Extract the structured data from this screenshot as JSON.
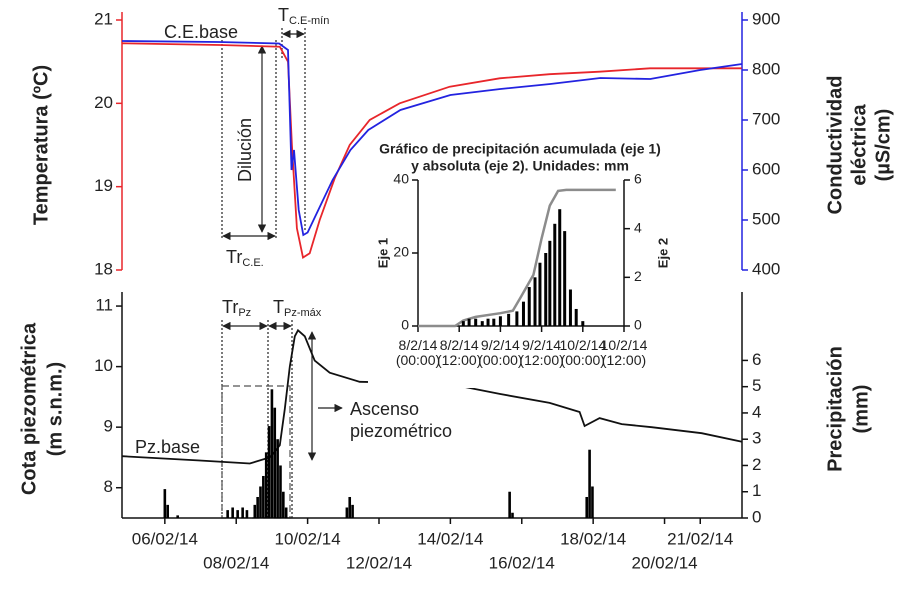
{
  "chart_data": [
    {
      "type": "line",
      "colored_axes": true,
      "ylabel": "Temperatura (ºC)",
      "y2label": [
        "Conductividad",
        "eléctrica",
        "(µS/cm)"
      ],
      "xlim": [
        4.8,
        22.17
      ],
      "ylim": [
        18,
        21
      ],
      "yticks": [
        18,
        19,
        20,
        21
      ],
      "y2lim": [
        400,
        900
      ],
      "y2ticks": [
        400,
        500,
        600,
        700,
        800,
        900
      ],
      "series": [
        {
          "name": "Temperatura",
          "color": "#e8262b",
          "x": [
            4.8,
            7.54,
            9.22,
            9.45,
            9.56,
            9.7,
            9.87,
            10.06,
            10.34,
            10.76,
            11.18,
            11.74,
            12.58,
            13.98,
            15.38,
            16.78,
            18.18,
            19.59,
            20.99,
            22.16
          ],
          "values": [
            20.72,
            20.7,
            20.68,
            20.5,
            19.5,
            18.5,
            18.15,
            18.2,
            18.6,
            19.1,
            19.5,
            19.8,
            20.0,
            20.2,
            20.3,
            20.35,
            20.38,
            20.42,
            20.42,
            20.42
          ]
        },
        {
          "name": "Conductividad eléctrica",
          "color": "#2323e0",
          "axis": "y2",
          "x": [
            4.8,
            7.5,
            9.2,
            9.45,
            9.55,
            9.62,
            9.75,
            9.88,
            10.0,
            10.3,
            10.7,
            11.2,
            11.7,
            12.6,
            14.0,
            15.4,
            16.8,
            18.2,
            19.6,
            21.0,
            22.17
          ],
          "values": [
            858,
            856,
            853,
            840,
            600,
            640,
            520,
            470,
            475,
            520,
            580,
            640,
            680,
            720,
            750,
            762,
            772,
            784,
            782,
            800,
            812
          ]
        }
      ],
      "annotations": [
        {
          "text": "C.E.base"
        },
        {
          "text": "T",
          "sub": "C.E-mín"
        },
        {
          "text": "Dilución"
        },
        {
          "text": "Tr",
          "sub": "C.E."
        }
      ]
    },
    {
      "type": "line",
      "ylabel": [
        "Cota piezométrica",
        "(m s.n.m.)"
      ],
      "y2label": [
        "Precipitación",
        "(mm)"
      ],
      "xlim": [
        4.8,
        22.17
      ],
      "xticks": [
        {
          "value": 6,
          "label": "06/02/14"
        },
        {
          "value": 8,
          "label": "08/02/14"
        },
        {
          "value": 10,
          "label": "10/02/14"
        },
        {
          "value": 12,
          "label": "12/02/14"
        },
        {
          "value": 14,
          "label": "14/02/14"
        },
        {
          "value": 16,
          "label": "16/02/14"
        },
        {
          "value": 18,
          "label": "18/02/14"
        },
        {
          "value": 20,
          "label": "20/02/14"
        },
        {
          "value": 21,
          "label": "21/02/14"
        }
      ],
      "ylim": [
        7.5,
        11.1
      ],
      "yticks": [
        8,
        9,
        10,
        11
      ],
      "y2lim": [
        0,
        8.3
      ],
      "y2ticks": [
        0,
        1,
        2,
        3,
        4,
        5,
        6
      ],
      "series": [
        {
          "name": "Cota piezométrica",
          "color": "#111111",
          "x": [
            4.8,
            6.98,
            8.38,
            8.94,
            9.22,
            9.36,
            9.5,
            9.64,
            9.73,
            9.92,
            10.2,
            10.62,
            11.46,
            13.14,
            14.26,
            15.38,
            16.78,
            17.62,
            17.76,
            18.18,
            18.8,
            19.64,
            21.04,
            22.17
          ],
          "values": [
            8.52,
            8.45,
            8.4,
            8.5,
            8.7,
            9.3,
            10.0,
            10.5,
            10.6,
            10.5,
            10.1,
            9.9,
            9.75,
            9.73,
            9.68,
            9.55,
            9.4,
            9.25,
            9.02,
            9.15,
            9.05,
            9.0,
            8.9,
            8.76
          ]
        },
        {
          "name": "Precipitación",
          "color": "#000000",
          "axis": "y2",
          "type": "bar",
          "x": [
            6.0,
            6.08,
            6.36,
            7.76,
            7.9,
            8.04,
            8.18,
            8.3,
            8.52,
            8.6,
            8.68,
            8.76,
            8.84,
            8.92,
            9.0,
            9.08,
            9.16,
            9.24,
            9.32,
            9.4,
            11.1,
            11.18,
            11.26,
            15.66,
            15.74,
            17.82,
            17.9,
            17.98
          ],
          "values": [
            1.1,
            0.5,
            0.1,
            0.3,
            0.4,
            0.3,
            0.4,
            0.3,
            0.5,
            0.8,
            1.2,
            1.6,
            2.5,
            3.5,
            4.9,
            4.2,
            3.0,
            2.0,
            1.0,
            0.4,
            0.4,
            0.8,
            0.5,
            1.0,
            0.2,
            0.8,
            2.6,
            1.2
          ]
        }
      ],
      "annotations": [
        {
          "text": "Tr",
          "sub": "Pz"
        },
        {
          "text": "T",
          "sub": "Pz-máx"
        },
        {
          "text": "Ascenso piezométrico"
        },
        {
          "text": "Pz.base"
        }
      ]
    },
    {
      "type": "line",
      "title": [
        "Gráfico de precipitación acumulada (eje 1)",
        "y absoluta (eje 2). Unidades: mm"
      ],
      "ylabel": "Eje 1",
      "y2label": "Eje 2",
      "xlim": [
        8,
        10.5
      ],
      "xticks": [
        {
          "value": 8,
          "label": "8/2/14 (00:00)"
        },
        {
          "value": 8.5,
          "label": "8/2/14 (12:00)"
        },
        {
          "value": 9,
          "label": "9/2/14 (00:00)"
        },
        {
          "value": 9.5,
          "label": "9/2/14 (12:00)"
        },
        {
          "value": 10,
          "label": "10/2/14 (00:00)"
        },
        {
          "value": 10.5,
          "label": "10/2/14 (12:00)"
        }
      ],
      "ylim": [
        0,
        40
      ],
      "yticks": [
        0,
        20,
        40
      ],
      "y2lim": [
        0,
        6
      ],
      "y2ticks": [
        0,
        2,
        4,
        6
      ],
      "series": [
        {
          "name": "Precipitación acumulada",
          "color": "#8c8c8c",
          "x": [
            8.0,
            8.45,
            8.55,
            8.7,
            9.0,
            9.15,
            9.25,
            9.4,
            9.5,
            9.6,
            9.7,
            9.8,
            10.4
          ],
          "values": [
            0,
            0,
            1.5,
            2.5,
            3.5,
            4.2,
            8,
            14,
            24,
            33,
            37,
            37.3,
            37.3
          ]
        },
        {
          "name": "Precipitación absoluta",
          "color": "#000000",
          "axis": "y2",
          "type": "bar",
          "x": [
            8.55,
            8.62,
            8.7,
            8.78,
            8.85,
            8.92,
            9.0,
            9.1,
            9.2,
            9.28,
            9.35,
            9.42,
            9.48,
            9.55,
            9.6,
            9.66,
            9.72,
            9.78,
            9.85,
            9.92,
            10.0
          ],
          "values": [
            0.2,
            0.3,
            0.3,
            0.2,
            0.3,
            0.3,
            0.4,
            0.5,
            0.6,
            1.0,
            1.6,
            2.0,
            2.6,
            3.0,
            3.5,
            4.2,
            4.8,
            3.9,
            1.5,
            0.7,
            0.2
          ]
        }
      ]
    }
  ]
}
